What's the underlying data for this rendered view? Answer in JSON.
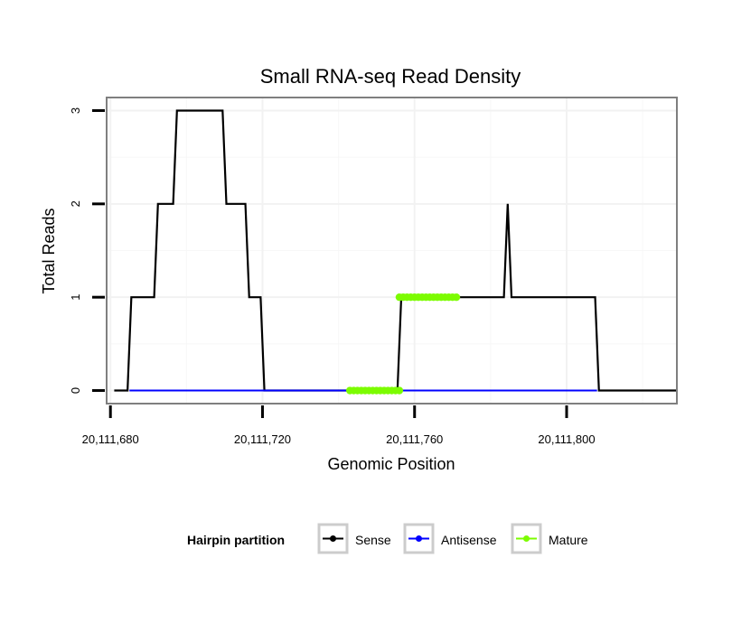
{
  "chart_data": {
    "type": "line",
    "title": "Small RNA-seq Read Density",
    "xlabel": "Genomic Position",
    "ylabel": "Total Reads",
    "xlim": [
      20111679,
      20111829
    ],
    "ylim": [
      -0.14,
      3.14
    ],
    "x_ticks": [
      {
        "value": 20111680,
        "label": "20,111,680"
      },
      {
        "value": 20111720,
        "label": "20,111,720"
      },
      {
        "value": 20111760,
        "label": "20,111,760"
      },
      {
        "value": 20111800,
        "label": "20,111,800"
      }
    ],
    "y_ticks": [
      {
        "value": 0,
        "label": "0"
      },
      {
        "value": 1,
        "label": "1"
      },
      {
        "value": 2,
        "label": "2"
      },
      {
        "value": 3,
        "label": "3"
      }
    ],
    "series": [
      {
        "name": "Sense",
        "color": "#000000",
        "x": [
          20111681,
          20111684.5,
          20111685.5,
          20111691.5,
          20111692.5,
          20111696.5,
          20111697.5,
          20111709.5,
          20111710.5,
          20111715.5,
          20111716.5,
          20111719.5,
          20111720.5,
          20111755.5,
          20111756.5,
          20111783.5,
          20111784.5,
          20111785.5,
          20111807.5,
          20111808.5,
          20111829
        ],
        "values": [
          0,
          0,
          1,
          1,
          2,
          2,
          3,
          3,
          2,
          2,
          1,
          1,
          0,
          0,
          1,
          1,
          2,
          1,
          1,
          0,
          0
        ]
      },
      {
        "name": "Antisense",
        "color": "#0000ff",
        "x": [
          20111685,
          20111808
        ],
        "values": [
          0,
          0
        ]
      },
      {
        "name": "Mature",
        "color": "#7cfc00",
        "segments": [
          {
            "x": [
              20111743,
              20111756
            ],
            "values": [
              0,
              0
            ]
          },
          {
            "x": [
              20111756,
              20111771
            ],
            "values": [
              1,
              1
            ]
          }
        ]
      }
    ],
    "legend": {
      "title": "Hairpin partition",
      "position": "bottom",
      "entries": [
        "Sense",
        "Antisense",
        "Mature"
      ]
    },
    "grid": true
  }
}
